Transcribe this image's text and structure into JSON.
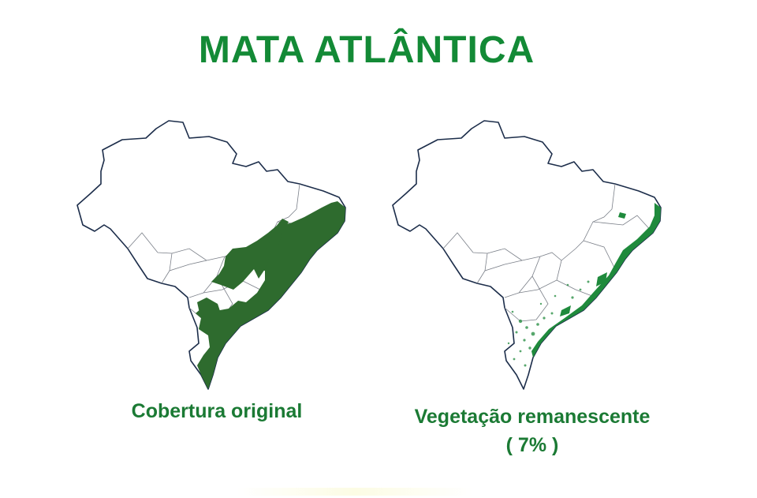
{
  "title": "MATA ATLÂNTICA",
  "colors": {
    "title": "#138a36",
    "caption": "#1b7a34",
    "forest_original": "#2e6b2e",
    "forest_remaining": "#1f8a3c",
    "outline": "#1c2d4a",
    "state_lines": "#7a7f88"
  },
  "maps": [
    {
      "id": "original",
      "caption": "Cobertura original"
    },
    {
      "id": "remaining",
      "caption": "Vegetação remanescente",
      "caption_line2": "( 7% )"
    }
  ]
}
